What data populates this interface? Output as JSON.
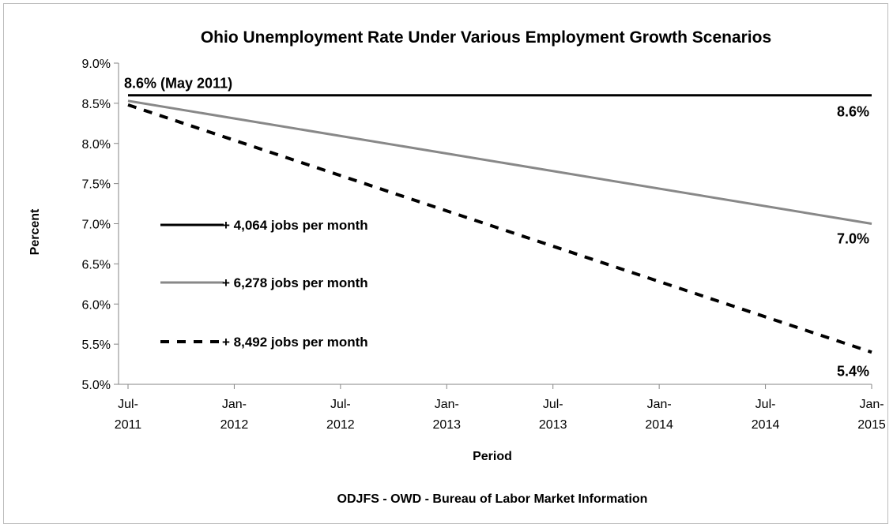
{
  "chart_data": {
    "type": "line",
    "title": "Ohio Unemployment Rate Under Various Employment Growth Scenarios",
    "xlabel": "Period",
    "ylabel": "Percent",
    "source": "ODJFS - OWD - Bureau of Labor Market Information",
    "ylim": [
      5.0,
      9.0
    ],
    "yticks": [
      "5.0%",
      "5.5%",
      "6.0%",
      "6.5%",
      "7.0%",
      "7.5%",
      "8.0%",
      "8.5%",
      "9.0%"
    ],
    "xticks": [
      {
        "l1": "Jul-",
        "l2": "2011"
      },
      {
        "l1": "Jan-",
        "l2": "2012"
      },
      {
        "l1": "Jul-",
        "l2": "2012"
      },
      {
        "l1": "Jan-",
        "l2": "2013"
      },
      {
        "l1": "Jul-",
        "l2": "2013"
      },
      {
        "l1": "Jan-",
        "l2": "2014"
      },
      {
        "l1": "Jul-",
        "l2": "2014"
      },
      {
        "l1": "Jan-",
        "l2": "2015"
      }
    ],
    "x_start": "Jul-2011",
    "x_end": "Jan-2015",
    "grid": false,
    "series": [
      {
        "name": "+ 4,064 jobs per month",
        "start": 8.6,
        "end": 8.6,
        "color": "#000000",
        "style": "solid",
        "end_label": "8.6%"
      },
      {
        "name": "+ 6,278 jobs per month",
        "start": 8.53,
        "end": 7.0,
        "color": "#888888",
        "style": "solid",
        "end_label": "7.0%"
      },
      {
        "name": "+ 8,492 jobs per month",
        "start": 8.48,
        "end": 5.4,
        "color": "#000000",
        "style": "dashed",
        "end_label": "5.4%"
      }
    ],
    "annotations": [
      {
        "text": "8.6% (May 2011)"
      }
    ]
  }
}
